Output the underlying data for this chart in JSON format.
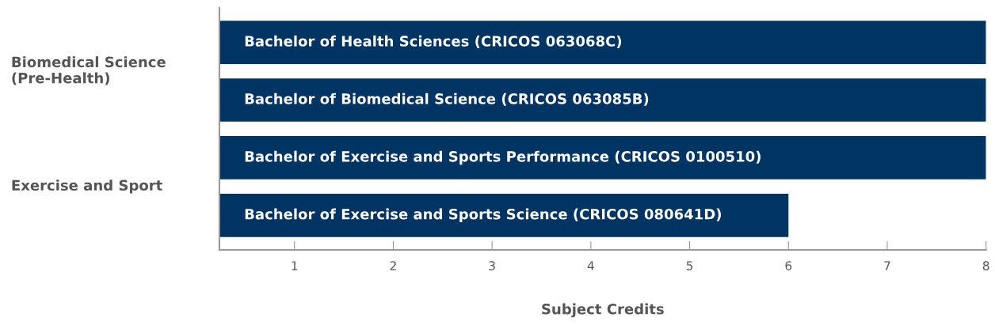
{
  "chart_data": {
    "type": "bar",
    "orientation": "horizontal",
    "categories": [
      "Bachelor of Health Sciences (CRICOS 063068C)",
      "Bachelor of Biomedical Science (CRICOS 063085B)",
      "Bachelor of Exercise and Sports Performance (CRICOS 0100510)",
      "Bachelor of Exercise and Sports Science (CRICOS 080641D)"
    ],
    "values": [
      8,
      8,
      8,
      6
    ],
    "color": "#003462",
    "xlim": [
      0.24,
      8
    ],
    "xticks": [
      1,
      2,
      3,
      4,
      5,
      6,
      7,
      8
    ],
    "xlabel": "Subject Credits",
    "annotations": [
      "Biomedical Science\n(Pre-Health)",
      "Exercise and Sport"
    ],
    "grid": false,
    "legend": false
  }
}
